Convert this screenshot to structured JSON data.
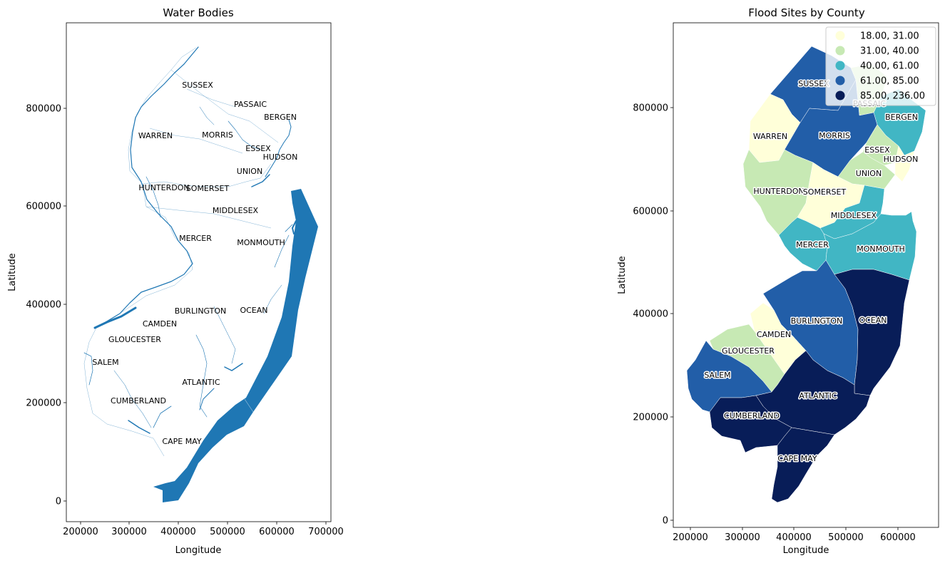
{
  "colors": {
    "water": "#1f77b4",
    "class_0": "#ffffd9",
    "class_1": "#c7e9b4",
    "class_2": "#41b6c4",
    "class_3": "#225ea8",
    "class_4": "#081d58"
  },
  "panels": [
    {
      "title": "Water Bodies",
      "xlabel": "Longitude",
      "ylabel": "Latitude",
      "xticks": [
        "200000",
        "300000",
        "400000",
        "500000",
        "600000",
        "700000"
      ],
      "yticks": [
        "0",
        "200000",
        "400000",
        "600000",
        "800000"
      ]
    },
    {
      "title": "Flood Sites by County",
      "xlabel": "Longitude",
      "ylabel": "Latitude",
      "xticks": [
        "200000",
        "300000",
        "400000",
        "500000",
        "600000"
      ],
      "yticks": [
        "0",
        "200000",
        "400000",
        "600000",
        "800000"
      ],
      "legend": {
        "placement": "top-right",
        "entries": [
          "18.00,  31.00",
          "31.00,  40.00",
          "40.00,  61.00",
          "61.00,  85.00",
          "85.00, 236.00"
        ]
      }
    }
  ],
  "counties": [
    {
      "name": "SUSSEX",
      "class": 3
    },
    {
      "name": "PASSAIC",
      "class": 1
    },
    {
      "name": "BERGEN",
      "class": 2
    },
    {
      "name": "WARREN",
      "class": 0
    },
    {
      "name": "MORRIS",
      "class": 3
    },
    {
      "name": "ESSEX",
      "class": 1
    },
    {
      "name": "HUDSON",
      "class": 0
    },
    {
      "name": "UNION",
      "class": 1
    },
    {
      "name": "HUNTERDON",
      "class": 1
    },
    {
      "name": "SOMERSET",
      "class": 0
    },
    {
      "name": "MIDDLESEX",
      "class": 2
    },
    {
      "name": "MERCER",
      "class": 2
    },
    {
      "name": "MONMOUTH",
      "class": 2
    },
    {
      "name": "BURLINGTON",
      "class": 3
    },
    {
      "name": "OCEAN",
      "class": 4
    },
    {
      "name": "CAMDEN",
      "class": 0
    },
    {
      "name": "GLOUCESTER",
      "class": 1
    },
    {
      "name": "SALEM",
      "class": 3
    },
    {
      "name": "ATLANTIC",
      "class": 4
    },
    {
      "name": "CUMBERLAND",
      "class": 4
    },
    {
      "name": "CAPE MAY",
      "class": 4
    }
  ],
  "left_labels": [
    "SUSSEX",
    "PASSAIC",
    "BERGEN",
    "WARREN",
    "MORRIS",
    "ESSEX",
    "HUDSON",
    "UNION",
    "HUNTERDON",
    "SOMERSET",
    "MIDDLESEX",
    "MERCER",
    "MONMOUTH",
    "BURLINGTON",
    "OCEAN",
    "CAMDEN",
    "GLOUCESTER",
    "SALEM",
    "ATLANTIC",
    "CUMBERLAND",
    "CAPE MAY"
  ]
}
